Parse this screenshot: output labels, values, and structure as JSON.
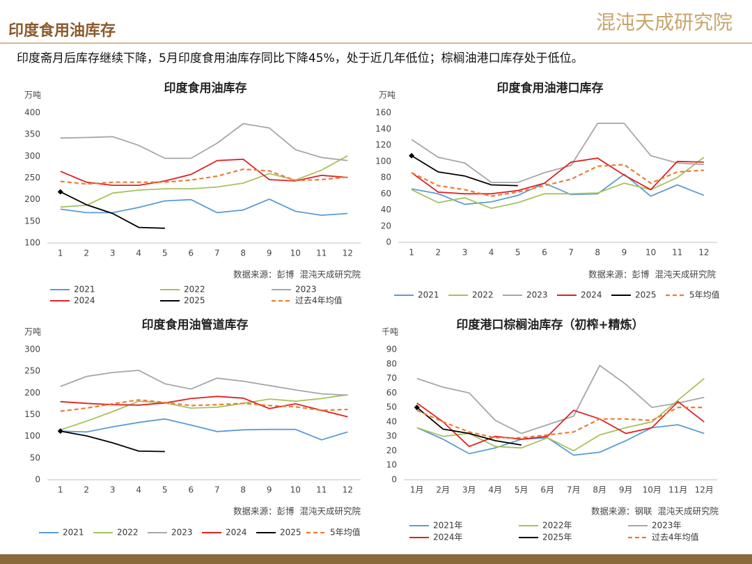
{
  "header": {
    "title": "印度食用油库存",
    "logo": "混沌天成研究院",
    "summary": "印度斋月后库存继续下降，5月印度食用油库存同比下降45%，处于近几年低位；棕榈油港口库存处于低位。"
  },
  "chart_data": [
    {
      "type": "line",
      "title": "印度食用油库存",
      "y_unit": "万吨",
      "source": "数据来源：彭博  混沌天成研究院",
      "categories": [
        "1",
        "2",
        "3",
        "4",
        "5",
        "6",
        "7",
        "8",
        "9",
        "10",
        "11",
        "12"
      ],
      "ylim": [
        100,
        400
      ],
      "yticks": [
        100,
        150,
        200,
        250,
        300,
        350,
        400
      ],
      "series": [
        {
          "name": "2021",
          "color": "#5b9bd5",
          "values": [
            178,
            170,
            170,
            182,
            197,
            200,
            170,
            176,
            201,
            173,
            164,
            168
          ]
        },
        {
          "name": "2022",
          "color": "#a5c25c",
          "values": [
            183,
            187,
            215,
            222,
            225,
            225,
            229,
            238,
            260,
            245,
            268,
            301
          ]
        },
        {
          "name": "2023",
          "color": "#a6a6a6",
          "values": [
            342,
            343,
            345,
            325,
            295,
            295,
            330,
            375,
            365,
            315,
            297,
            290
          ]
        },
        {
          "name": "2024",
          "color": "#e02020",
          "values": [
            265,
            240,
            233,
            233,
            243,
            258,
            290,
            293,
            246,
            243,
            256,
            251
          ]
        },
        {
          "name": "2025",
          "color": "#000000",
          "values": [
            218,
            188,
            168,
            136,
            134,
            null,
            null,
            null,
            null,
            null,
            null,
            null
          ]
        },
        {
          "name": "过去4年均值",
          "color": "#ed7d31",
          "dashed": true,
          "values": [
            242,
            236,
            240,
            240,
            240,
            245,
            254,
            270,
            266,
            244,
            246,
            252
          ]
        }
      ]
    },
    {
      "type": "line",
      "title": "印度食用油港口库存",
      "y_unit": "万吨",
      "source": "数据来源：彭博  混沌天成研究院",
      "categories": [
        "1",
        "2",
        "3",
        "4",
        "5",
        "6",
        "7",
        "8",
        "9",
        "10",
        "11",
        "12"
      ],
      "ylim": [
        0,
        160
      ],
      "yticks": [
        0,
        20,
        40,
        60,
        80,
        100,
        120,
        140,
        160
      ],
      "series": [
        {
          "name": "2021",
          "color": "#5b9bd5",
          "values": [
            66,
            60,
            47,
            50,
            58,
            73,
            59,
            60,
            84,
            57,
            71,
            58
          ]
        },
        {
          "name": "2022",
          "color": "#a5c25c",
          "values": [
            65,
            49,
            55,
            42,
            49,
            60,
            60,
            61,
            73,
            65,
            80,
            105
          ]
        },
        {
          "name": "2023",
          "color": "#a6a6a6",
          "values": [
            127,
            105,
            98,
            74,
            74,
            86,
            95,
            147,
            147,
            107,
            98,
            96
          ]
        },
        {
          "name": "2024",
          "color": "#e02020",
          "values": [
            86,
            62,
            60,
            60,
            64,
            73,
            99,
            104,
            83,
            65,
            100,
            99
          ]
        },
        {
          "name": "2025",
          "color": "#000000",
          "values": [
            107,
            87,
            82,
            71,
            70,
            null,
            null,
            null,
            null,
            null,
            null,
            null
          ]
        },
        {
          "name": "5年均值",
          "color": "#ed7d31",
          "dashed": true,
          "values": [
            86,
            70,
            65,
            57,
            62,
            70,
            78,
            94,
            96,
            73,
            87,
            89
          ]
        }
      ]
    },
    {
      "type": "line",
      "title": "印度食用油管道库存",
      "y_unit": "万吨",
      "source": "数据来源：彭博  混沌天成研究院",
      "categories": [
        "1",
        "2",
        "3",
        "4",
        "5",
        "6",
        "7",
        "8",
        "9",
        "10",
        "11",
        "12"
      ],
      "ylim": [
        0,
        300
      ],
      "yticks": [
        0,
        50,
        100,
        150,
        200,
        250,
        300
      ],
      "series": [
        {
          "name": "2021",
          "color": "#5b9bd5",
          "values": [
            112,
            110,
            122,
            132,
            140,
            126,
            111,
            115,
            116,
            116,
            92,
            110
          ]
        },
        {
          "name": "2022",
          "color": "#a5c25c",
          "values": [
            115,
            135,
            157,
            181,
            177,
            165,
            167,
            176,
            186,
            181,
            187,
            196
          ]
        },
        {
          "name": "2023",
          "color": "#a6a6a6",
          "values": [
            215,
            238,
            247,
            252,
            221,
            209,
            234,
            227,
            217,
            207,
            198,
            195
          ]
        },
        {
          "name": "2024",
          "color": "#e02020",
          "values": [
            180,
            176,
            173,
            172,
            177,
            187,
            192,
            188,
            164,
            175,
            160,
            145
          ]
        },
        {
          "name": "2025",
          "color": "#000000",
          "values": [
            112,
            101,
            85,
            66,
            65,
            null,
            null,
            null,
            null,
            null,
            null,
            null
          ]
        },
        {
          "name": "5年均值",
          "color": "#ed7d31",
          "dashed": true,
          "values": [
            158,
            165,
            175,
            184,
            178,
            171,
            173,
            176,
            171,
            168,
            160,
            162
          ]
        }
      ]
    },
    {
      "type": "line",
      "title": "印度港口棕榈油库存（初榨+精炼）",
      "y_unit": "千吨",
      "source": "数据来源：钢联  混沌天成研究院",
      "categories": [
        "1月",
        "2月",
        "3月",
        "4月",
        "5月",
        "6月",
        "7月",
        "8月",
        "9月",
        "10月",
        "11月",
        "12月"
      ],
      "ylim": [
        0,
        90
      ],
      "yticks": [
        0,
        10,
        20,
        30,
        40,
        50,
        60,
        70,
        80,
        90
      ],
      "series": [
        {
          "name": "2021年",
          "color": "#5b9bd5",
          "values": [
            36,
            28,
            18,
            22,
            28,
            29,
            17,
            19,
            27,
            36,
            38,
            32
          ]
        },
        {
          "name": "2022年",
          "color": "#a5c25c",
          "values": [
            36,
            30,
            32,
            23,
            22,
            29,
            20,
            31,
            36,
            40,
            55,
            70
          ]
        },
        {
          "name": "2023年",
          "color": "#a6a6a6",
          "values": [
            70,
            64,
            60,
            41,
            32,
            38,
            44,
            79,
            66,
            50,
            53,
            57
          ]
        },
        {
          "name": "2024年",
          "color": "#e02020",
          "values": [
            53,
            40,
            23,
            30,
            28,
            30,
            48,
            42,
            32,
            36,
            54,
            40
          ]
        },
        {
          "name": "2025年",
          "color": "#000000",
          "values": [
            50,
            35,
            32,
            27,
            24,
            null,
            null,
            null,
            null,
            null,
            null,
            null
          ]
        },
        {
          "name": "过去4年均值",
          "color": "#ed7d31",
          "dashed": true,
          "values": [
            48,
            40,
            33,
            29,
            29,
            31,
            33,
            42,
            42,
            41,
            50,
            50
          ]
        }
      ]
    }
  ]
}
